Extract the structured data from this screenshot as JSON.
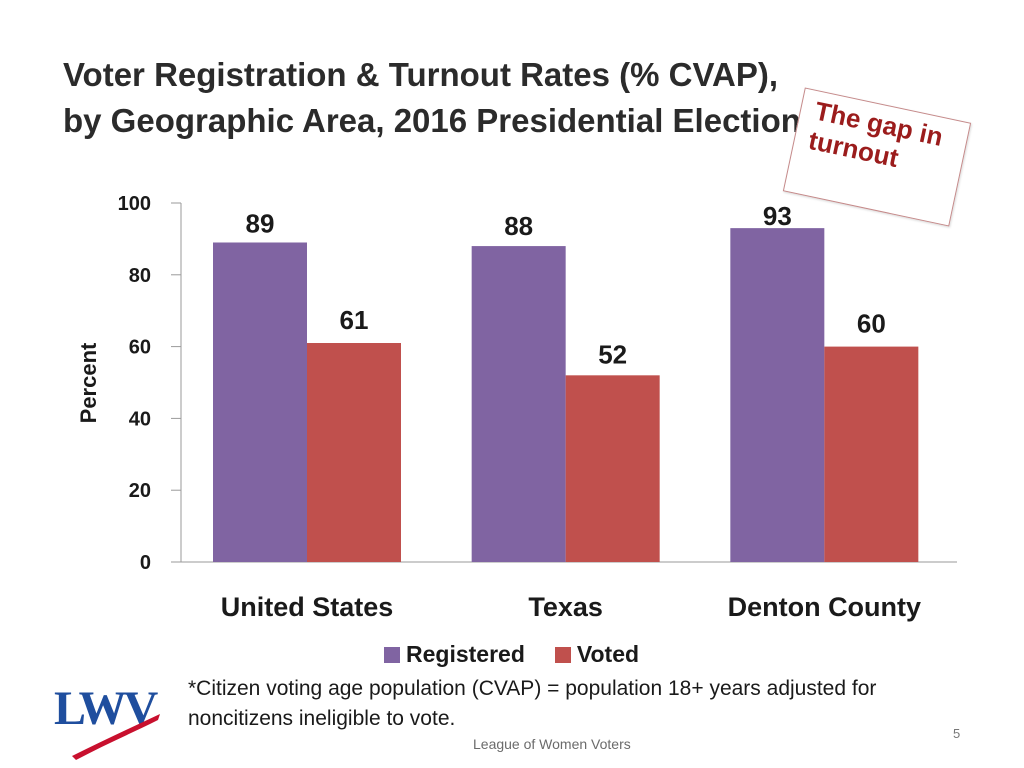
{
  "slide": {
    "title": "Voter Registration & Turnout Rates (% CVAP), by Geographic Area, 2016 Presidential Election",
    "callout": "The gap in turnout",
    "footnote": "*Citizen voting age population (CVAP) = population 18+ years adjusted for noncitizens ineligible to vote.",
    "footer": "League of Women Voters",
    "page_number": "5",
    "logo_text": "LWV"
  },
  "colors": {
    "registered": "#8064a2",
    "voted": "#c0504d",
    "callout_text": "#9b1c1c",
    "logo_blue": "#1f4e9e",
    "logo_red": "#c8102e"
  },
  "chart_data": {
    "type": "bar",
    "categories": [
      "United States",
      "Texas",
      "Denton County"
    ],
    "series": [
      {
        "name": "Registered",
        "values": [
          89,
          88,
          93
        ],
        "labels": [
          "89",
          "88",
          "93"
        ]
      },
      {
        "name": "Voted",
        "values": [
          61,
          52,
          60
        ],
        "labels": [
          "61",
          "52",
          "60"
        ]
      }
    ],
    "ylabel": "Percent",
    "xlabel": "",
    "ylim": [
      0,
      100
    ],
    "yticks": [
      0,
      20,
      40,
      60,
      80,
      100
    ],
    "legend": "bottom"
  }
}
